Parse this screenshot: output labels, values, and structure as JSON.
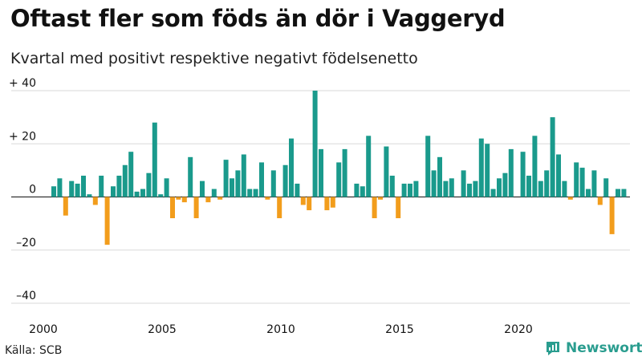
{
  "title": "Oftast fler som föds än dör i Vaggeryd",
  "subtitle": "Kvartal med positivt respektive negativt födelsenetto",
  "source": "Källa: SCB",
  "brand": "Newsworthy",
  "colors": {
    "positive": "#1a9a8c",
    "negative": "#f29d1c",
    "grid": "#d9d9d9",
    "axis": "#333333",
    "brand": "#2a9d8f"
  },
  "chart_data": {
    "type": "bar",
    "title": "Oftast fler som föds än dör i Vaggeryd",
    "subtitle": "Kvartal med positivt respektive negativt födelsenetto",
    "xlabel": "",
    "ylabel": "",
    "ylim": [
      -40,
      40
    ],
    "yticks": [
      40,
      20,
      0,
      -20,
      -40
    ],
    "ytick_labels": [
      "+ 40",
      "+ 20",
      "0",
      "–20",
      "–40"
    ],
    "x_start_year": 2000,
    "periods_per_year": 4,
    "xticks": [
      "2000",
      "2005",
      "2010",
      "2015",
      "2020"
    ],
    "grid": true,
    "values": [
      4,
      7,
      -7,
      6,
      5,
      8,
      1,
      -3,
      8,
      -18,
      4,
      8,
      12,
      17,
      2,
      3,
      9,
      28,
      1,
      7,
      -8,
      -1,
      -2,
      15,
      -8,
      6,
      -2,
      3,
      -1,
      14,
      7,
      10,
      16,
      3,
      3,
      13,
      -1,
      10,
      -8,
      12,
      22,
      5,
      -3,
      -5,
      40,
      18,
      -5,
      -4,
      13,
      18,
      0,
      5,
      4,
      23,
      -8,
      -1,
      19,
      8,
      -8,
      5,
      5,
      6,
      0,
      23,
      10,
      15,
      6,
      7,
      0,
      10,
      5,
      6,
      22,
      20,
      3,
      7,
      9,
      18,
      0,
      17,
      8,
      23,
      6,
      10,
      30,
      16,
      6,
      -1,
      13,
      11,
      3,
      10,
      -3,
      7,
      -14,
      3,
      3
    ]
  }
}
